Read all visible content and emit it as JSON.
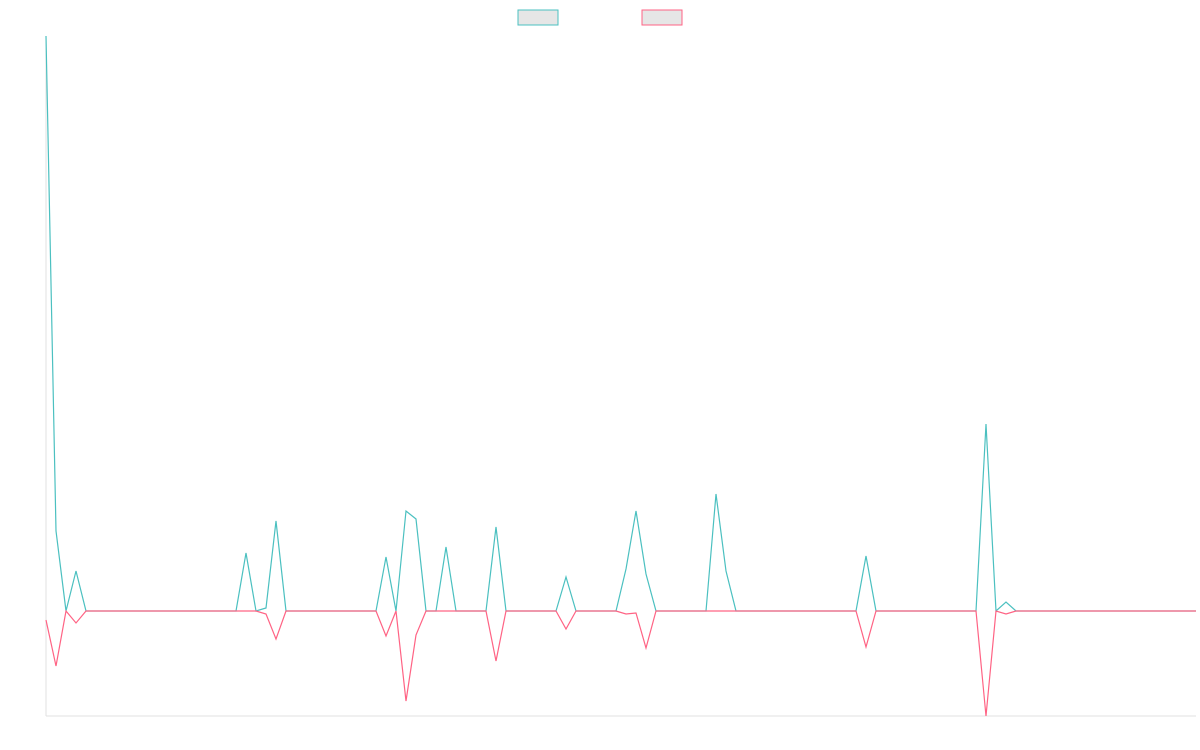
{
  "chart_data": {
    "type": "line",
    "categories": [
      null,
      null,
      null,
      null,
      null,
      null,
      null,
      null,
      null,
      null,
      null,
      null,
      null,
      null,
      null,
      null,
      null,
      null,
      null,
      null,
      null,
      null,
      null,
      null,
      null,
      null,
      null,
      null,
      null,
      null,
      null,
      null,
      null,
      null,
      null,
      null,
      null,
      null,
      null,
      null,
      null,
      null,
      null,
      null,
      null,
      null,
      null,
      null,
      null,
      null,
      null,
      null,
      null,
      null,
      null,
      null,
      null,
      null,
      null,
      null,
      null,
      null,
      null,
      null,
      null,
      null,
      null,
      null,
      null,
      null,
      null,
      null,
      null,
      null,
      null,
      null,
      null,
      null,
      null,
      null,
      null,
      null,
      null,
      null,
      null,
      null,
      null,
      null,
      null,
      null,
      null,
      null,
      null,
      null,
      null,
      null,
      null,
      null,
      null,
      null,
      null,
      null,
      null,
      null,
      null,
      null,
      null,
      null,
      null,
      null,
      null,
      null,
      null,
      null,
      null,
      null
    ],
    "series": [
      {
        "color": "#4bc0c0",
        "values": [
          575,
          80,
          0,
          40,
          0,
          0,
          0,
          0,
          0,
          0,
          0,
          0,
          0,
          0,
          0,
          0,
          0,
          0,
          0,
          0,
          58,
          0,
          3,
          90,
          0,
          0,
          0,
          0,
          0,
          0,
          0,
          0,
          0,
          0,
          54,
          0,
          100,
          92,
          0,
          0,
          64,
          0,
          0,
          0,
          0,
          84,
          0,
          0,
          0,
          0,
          0,
          0,
          34,
          0,
          0,
          0,
          0,
          0,
          42,
          100,
          37,
          0,
          0,
          0,
          0,
          0,
          0,
          117,
          40,
          0,
          0,
          0,
          0,
          0,
          0,
          0,
          0,
          0,
          0,
          0,
          0,
          0,
          55,
          0,
          0,
          0,
          0,
          0,
          0,
          0,
          0,
          0,
          0,
          0,
          187,
          0,
          9,
          0,
          0,
          0,
          0,
          0,
          0,
          0,
          0,
          0,
          0,
          0,
          0,
          0,
          0,
          0,
          0,
          0,
          0,
          0
        ]
      },
      {
        "color": "#ff6384",
        "values": [
          -9,
          -55,
          0,
          -12,
          0,
          0,
          0,
          0,
          0,
          0,
          0,
          0,
          0,
          0,
          0,
          0,
          0,
          0,
          0,
          0,
          0,
          0,
          -3,
          -28,
          0,
          0,
          0,
          0,
          0,
          0,
          0,
          0,
          0,
          0,
          -25,
          0,
          -90,
          -24,
          0,
          0,
          0,
          0,
          0,
          0,
          0,
          -50,
          0,
          0,
          0,
          0,
          0,
          0,
          -18,
          0,
          0,
          0,
          0,
          0,
          -3,
          -2,
          -37,
          0,
          0,
          0,
          0,
          0,
          0,
          0,
          0,
          0,
          0,
          0,
          0,
          0,
          0,
          0,
          0,
          0,
          0,
          0,
          0,
          0,
          -36,
          0,
          0,
          0,
          0,
          0,
          0,
          0,
          0,
          0,
          0,
          0,
          -105,
          0,
          -3,
          0,
          0,
          0,
          0,
          0,
          0,
          0,
          0,
          0,
          0,
          0,
          0,
          0,
          0,
          0,
          0,
          0,
          0,
          0
        ]
      }
    ],
    "ylim": [
      -105,
      575
    ],
    "legend": "top"
  }
}
